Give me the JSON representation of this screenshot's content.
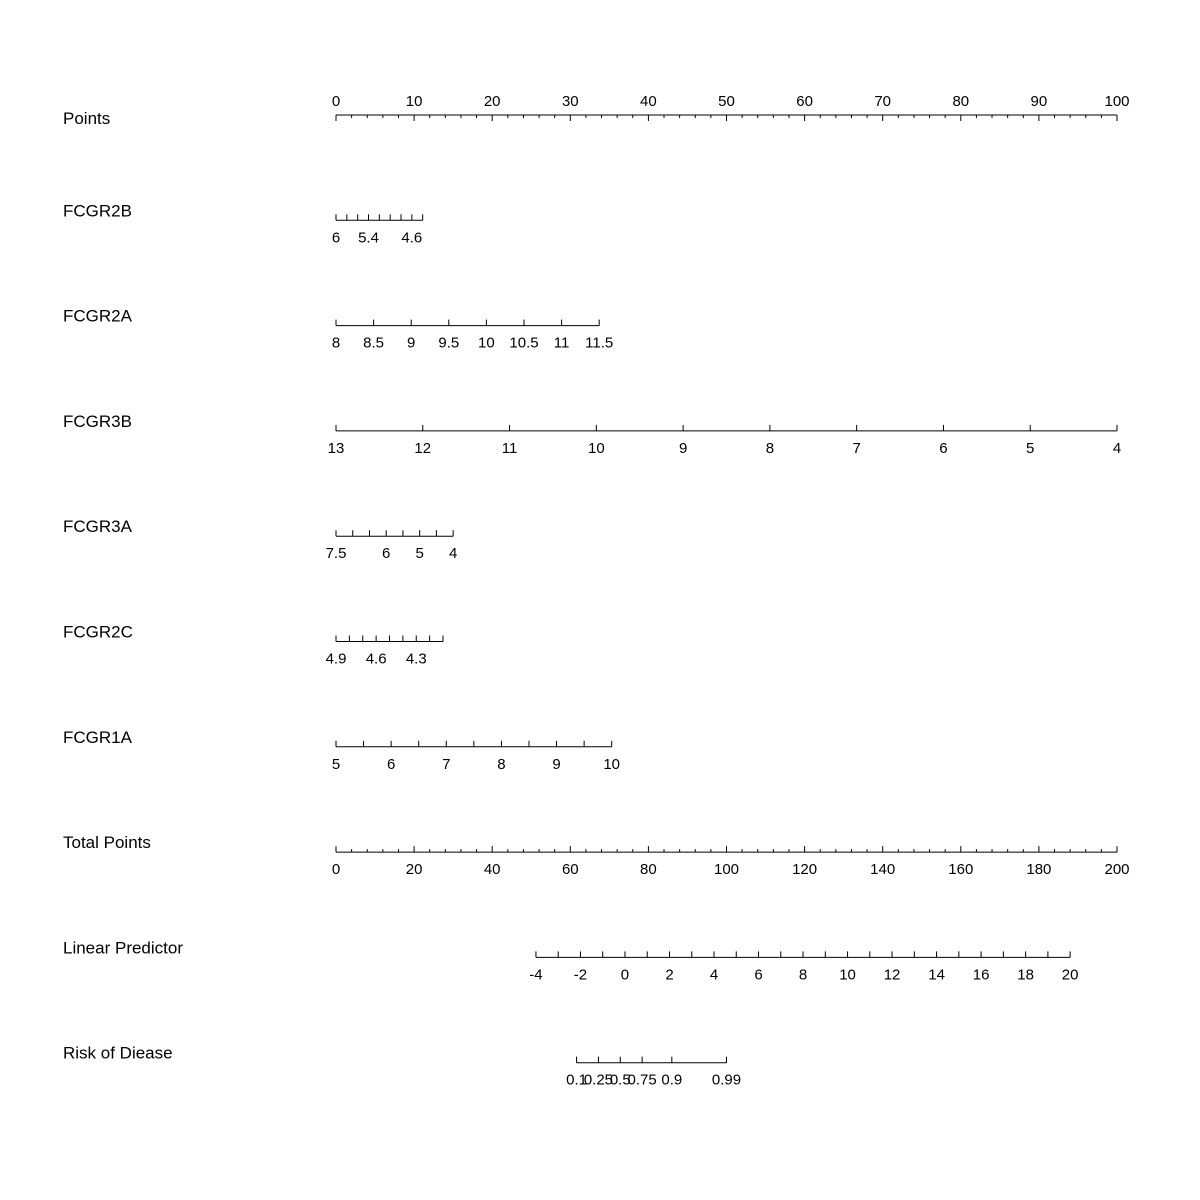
{
  "chart_data": {
    "type": "nomogram",
    "title": "",
    "points_scale": {
      "min": 0,
      "max": 100
    },
    "rows": [
      {
        "id": "points",
        "label": "Points",
        "labels_above": true,
        "points_range": [
          0,
          100
        ],
        "value_range": [
          0,
          100
        ],
        "major_ticks": [
          0,
          10,
          20,
          30,
          40,
          50,
          60,
          70,
          80,
          90,
          100
        ],
        "tick_labels": [
          "0",
          "10",
          "20",
          "30",
          "40",
          "50",
          "60",
          "70",
          "80",
          "90",
          "100"
        ],
        "minor_step": 2
      },
      {
        "id": "fcgr2b",
        "label": "FCGR2B",
        "points_range": [
          0,
          11.1
        ],
        "value_range": [
          6,
          4.4
        ],
        "major_ticks": [
          6,
          5.8,
          5.6,
          5.4,
          5.2,
          5.0,
          4.8,
          4.6,
          4.4
        ],
        "tick_labels": [
          "6",
          "5.4",
          "4.6"
        ],
        "tick_label_values": [
          6,
          5.4,
          4.6
        ]
      },
      {
        "id": "fcgr2a",
        "label": "FCGR2A",
        "points_range": [
          0,
          33.7
        ],
        "value_range": [
          8,
          11.5
        ],
        "major_ticks": [
          8,
          8.5,
          9,
          9.5,
          10,
          10.5,
          11,
          11.5
        ],
        "tick_labels": [
          "8",
          "8.5",
          "9",
          "9.5",
          "10",
          "10.5",
          "11",
          "11.5"
        ]
      },
      {
        "id": "fcgr3b",
        "label": "FCGR3B",
        "points_range": [
          0,
          100
        ],
        "value_range": [
          13,
          4
        ],
        "major_ticks": [
          13,
          12,
          11,
          10,
          9,
          8,
          7,
          6,
          5,
          4
        ],
        "tick_labels": [
          "13",
          "12",
          "11",
          "10",
          "9",
          "8",
          "7",
          "6",
          "5",
          "4"
        ]
      },
      {
        "id": "fcgr3a",
        "label": "FCGR3A",
        "points_range": [
          0,
          15.0
        ],
        "value_range": [
          7.5,
          4
        ],
        "major_ticks": [
          7.5,
          7,
          6.5,
          6,
          5.5,
          5,
          4.5,
          4
        ],
        "tick_labels": [
          "7.5",
          "6",
          "5",
          "4"
        ],
        "tick_label_values": [
          7.5,
          6,
          5,
          4
        ]
      },
      {
        "id": "fcgr2c",
        "label": "FCGR2C",
        "points_range": [
          0,
          13.7
        ],
        "value_range": [
          4.9,
          4.1
        ],
        "major_ticks": [
          4.9,
          4.8,
          4.7,
          4.6,
          4.5,
          4.4,
          4.3,
          4.2,
          4.1
        ],
        "tick_labels": [
          "4.9",
          "4.6",
          "4.3"
        ],
        "tick_label_values": [
          4.9,
          4.6,
          4.3
        ]
      },
      {
        "id": "fcgr1a",
        "label": "FCGR1A",
        "points_range": [
          0,
          35.3
        ],
        "value_range": [
          5,
          10
        ],
        "major_ticks": [
          5,
          5.5,
          6,
          6.5,
          7,
          7.5,
          8,
          8.5,
          9,
          9.5,
          10
        ],
        "tick_labels": [
          "5",
          "6",
          "7",
          "8",
          "9",
          "10"
        ],
        "tick_label_values": [
          5,
          6,
          7,
          8,
          9,
          10
        ]
      },
      {
        "id": "total-points",
        "label": "Total Points",
        "points_range": [
          0,
          100
        ],
        "value_range": [
          0,
          200
        ],
        "major_ticks": [
          0,
          20,
          40,
          60,
          80,
          100,
          120,
          140,
          160,
          180,
          200
        ],
        "tick_labels": [
          "0",
          "20",
          "40",
          "60",
          "80",
          "100",
          "120",
          "140",
          "160",
          "180",
          "200"
        ],
        "minor_step": 4
      },
      {
        "id": "linear-predictor",
        "label": "Linear Predictor",
        "points_range": [
          25.6,
          94.0
        ],
        "value_range": [
          -4,
          20
        ],
        "major_ticks": [
          -4,
          -3,
          -2,
          -1,
          0,
          1,
          2,
          3,
          4,
          5,
          6,
          7,
          8,
          9,
          10,
          11,
          12,
          13,
          14,
          15,
          16,
          17,
          18,
          19,
          20
        ],
        "tick_labels": [
          "-4",
          "-2",
          "0",
          "2",
          "4",
          "6",
          "8",
          "10",
          "12",
          "14",
          "16",
          "18",
          "20"
        ],
        "tick_label_values": [
          -4,
          -2,
          0,
          2,
          4,
          6,
          8,
          10,
          12,
          14,
          16,
          18,
          20
        ]
      },
      {
        "id": "risk-of-disease",
        "label": "Risk of Diease",
        "points_range": [
          30.8,
          50.0
        ],
        "value_range": [
          0.1,
          0.99
        ],
        "major_ticks": [
          0.1,
          0.25,
          0.5,
          0.75,
          0.9,
          0.99
        ],
        "tick_labels": [
          "0.1",
          "0.25",
          "0.5",
          "0.75",
          "0.9",
          "0.99"
        ],
        "tick_points": [
          30.8,
          33.6,
          36.4,
          39.2,
          43.0,
          50.0
        ]
      }
    ]
  }
}
